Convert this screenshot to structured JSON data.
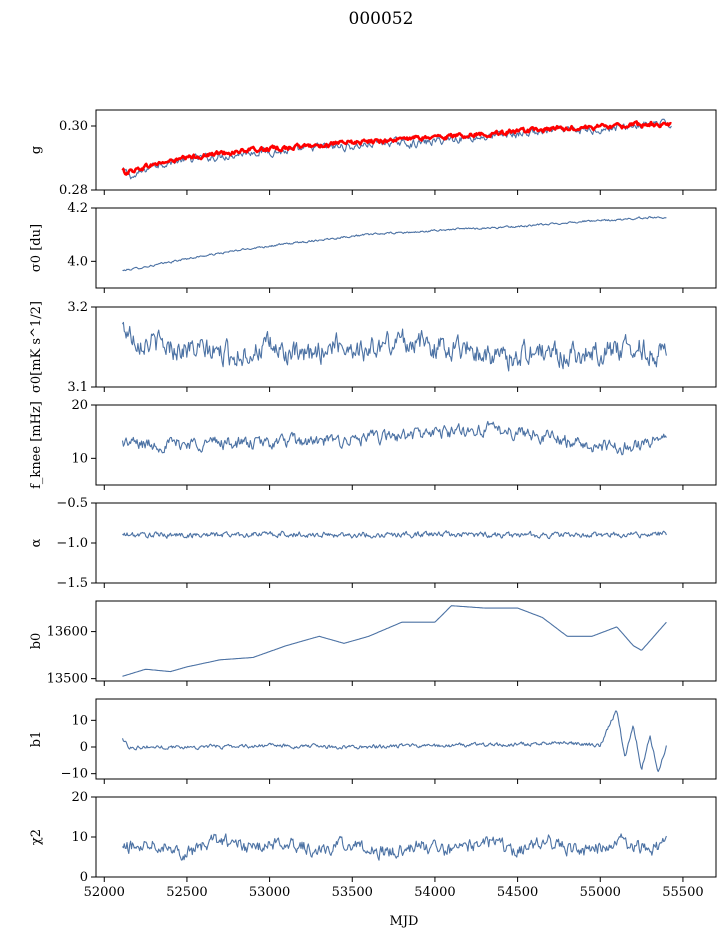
{
  "figure": {
    "title": "000052",
    "xlabel": "MJD"
  },
  "colors": {
    "series": "#4c72a4",
    "fit": "#ff0000",
    "axis": "#000000"
  },
  "chart_data": [
    {
      "type": "line",
      "panel_id": "g",
      "ylabel": "g",
      "ylim": [
        0.28,
        0.305
      ],
      "yticks": [
        0.28,
        0.3
      ],
      "ytick_labels": [
        "0.28",
        "0.30"
      ],
      "xlim": [
        51950,
        55700
      ],
      "x_range": [
        52100,
        55430
      ],
      "series": [
        {
          "color": "#4c72a4",
          "x": [
            52110,
            52180,
            52300,
            52500,
            52700,
            52900,
            53100,
            53300,
            53500,
            53700,
            53900,
            54100,
            54300,
            54500,
            54700,
            54900,
            55100,
            55300,
            55430
          ],
          "y": [
            0.286,
            0.284,
            0.288,
            0.2895,
            0.2905,
            0.292,
            0.292,
            0.2935,
            0.2935,
            0.295,
            0.2945,
            0.296,
            0.2965,
            0.2975,
            0.2985,
            0.2985,
            0.2995,
            0.3005,
            0.3005
          ]
        },
        {
          "color": "#ff0000",
          "x": [
            52110,
            52130,
            52300,
            52500,
            52700,
            52900,
            53100,
            53300,
            53500,
            53700,
            53900,
            54100,
            54300,
            54500,
            54700,
            54900,
            55100,
            55300,
            55430
          ],
          "y": [
            0.286,
            0.2855,
            0.288,
            0.29,
            0.2915,
            0.2925,
            0.2932,
            0.294,
            0.2948,
            0.2955,
            0.2962,
            0.2968,
            0.2975,
            0.2982,
            0.299,
            0.2995,
            0.3,
            0.3005,
            0.3002
          ]
        }
      ]
    },
    {
      "type": "line",
      "panel_id": "sigma0-du",
      "ylabel": "σ0 [du]",
      "ylim": [
        3.9,
        4.2
      ],
      "yticks": [
        4.0,
        4.2
      ],
      "ytick_labels": [
        "4.0",
        "4.2"
      ],
      "xlim": [
        51950,
        55700
      ],
      "series": [
        {
          "color": "#4c72a4",
          "x": [
            52110,
            52300,
            52500,
            52700,
            52900,
            53100,
            53300,
            53500,
            53700,
            53900,
            54100,
            54300,
            54500,
            54700,
            54900,
            55100,
            55300,
            55400
          ],
          "y": [
            3.965,
            3.985,
            4.01,
            4.03,
            4.05,
            4.065,
            4.08,
            4.095,
            4.105,
            4.11,
            4.12,
            4.125,
            4.13,
            4.14,
            4.15,
            4.155,
            4.165,
            4.165
          ]
        }
      ]
    },
    {
      "type": "line",
      "panel_id": "sigma0-mk",
      "ylabel": "σ0[mK s^1/2]",
      "ylim": [
        3.1,
        3.2
      ],
      "yticks": [
        3.1,
        3.2
      ],
      "ytick_labels": [
        "3.1",
        "3.2"
      ],
      "xlim": [
        51950,
        55700
      ],
      "series": [
        {
          "color": "#4c72a4",
          "x": [
            52110,
            52200,
            52400,
            52600,
            52800,
            53000,
            53200,
            53400,
            53600,
            53800,
            54000,
            54200,
            54400,
            54600,
            54800,
            55000,
            55200,
            55400
          ],
          "y": [
            3.175,
            3.16,
            3.15,
            3.145,
            3.14,
            3.15,
            3.135,
            3.155,
            3.145,
            3.16,
            3.15,
            3.15,
            3.135,
            3.145,
            3.14,
            3.145,
            3.15,
            3.14
          ]
        }
      ]
    },
    {
      "type": "line",
      "panel_id": "fknee",
      "ylabel": "f_knee [mHz]",
      "ylim": [
        5,
        20
      ],
      "yticks": [
        10,
        20
      ],
      "ytick_labels": [
        "10",
        "20"
      ],
      "xlim": [
        51950,
        55700
      ],
      "series": [
        {
          "color": "#4c72a4",
          "x": [
            52110,
            52300,
            52500,
            52700,
            52900,
            53100,
            53300,
            53500,
            53700,
            53900,
            54100,
            54300,
            54500,
            54700,
            54900,
            55100,
            55300,
            55400
          ],
          "y": [
            13.0,
            12.5,
            12.8,
            13.0,
            12.7,
            13.2,
            13.0,
            13.5,
            14.0,
            14.5,
            15.0,
            15.5,
            15.0,
            14.0,
            12.5,
            12.0,
            13.0,
            14.5
          ]
        }
      ]
    },
    {
      "type": "line",
      "panel_id": "alpha",
      "ylabel": "α",
      "ylim": [
        -1.5,
        -0.5
      ],
      "yticks": [
        -1.5,
        -1.0,
        -0.5
      ],
      "ytick_labels": [
        "−1.5",
        "−1.0",
        "−0.5"
      ],
      "xlim": [
        51950,
        55700
      ],
      "series": [
        {
          "color": "#4c72a4",
          "x": [
            52110,
            52500,
            53000,
            53500,
            54000,
            54500,
            55000,
            55400
          ],
          "y": [
            -0.9,
            -0.9,
            -0.89,
            -0.9,
            -0.89,
            -0.9,
            -0.9,
            -0.89
          ]
        }
      ]
    },
    {
      "type": "line",
      "panel_id": "b0",
      "ylabel": "b0",
      "ylim": [
        13495,
        13665
      ],
      "yticks": [
        13500,
        13600
      ],
      "ytick_labels": [
        "13500",
        "13600"
      ],
      "xlim": [
        51950,
        55700
      ],
      "series": [
        {
          "color": "#4c72a4",
          "x": [
            52110,
            52250,
            52400,
            52500,
            52700,
            52900,
            53100,
            53300,
            53450,
            53600,
            53800,
            54000,
            54100,
            54300,
            54500,
            54650,
            54800,
            54950,
            55100,
            55200,
            55250,
            55300,
            55400
          ],
          "y": [
            13505,
            13520,
            13515,
            13525,
            13540,
            13545,
            13570,
            13590,
            13575,
            13590,
            13620,
            13620,
            13655,
            13650,
            13650,
            13630,
            13590,
            13590,
            13610,
            13570,
            13560,
            13580,
            13620
          ]
        }
      ]
    },
    {
      "type": "line",
      "panel_id": "b1",
      "ylabel": "b1",
      "ylim": [
        -12,
        18
      ],
      "yticks": [
        -10,
        0,
        10
      ],
      "ytick_labels": [
        "−10",
        "0",
        "10"
      ],
      "xlim": [
        51950,
        55700
      ],
      "series": [
        {
          "color": "#4c72a4",
          "x": [
            52110,
            52150,
            52500,
            53000,
            53500,
            54000,
            54500,
            54800,
            55000,
            55100,
            55150,
            55200,
            55250,
            55300,
            55350,
            55400
          ],
          "y": [
            3.0,
            0.0,
            0.0,
            0.5,
            0.0,
            0.5,
            1.0,
            1.5,
            0.5,
            14.0,
            -4.0,
            8.0,
            -8.0,
            4.0,
            -9.0,
            0.0
          ]
        }
      ]
    },
    {
      "type": "line",
      "panel_id": "chi2",
      "ylabel": "χ2",
      "ylim": [
        0,
        20
      ],
      "yticks": [
        0,
        10,
        20
      ],
      "ytick_labels": [
        "0",
        "10",
        "20"
      ],
      "xlabel": "MJD",
      "xticks": [
        52000,
        52500,
        53000,
        53500,
        54000,
        54500,
        55000,
        55500
      ],
      "xtick_labels": [
        "52000",
        "52500",
        "53000",
        "53500",
        "54000",
        "54500",
        "55000",
        "55500"
      ],
      "xlim": [
        51950,
        55700
      ],
      "series": [
        {
          "color": "#4c72a4",
          "x": [
            52110,
            52300,
            52500,
            52700,
            52900,
            53100,
            53300,
            53500,
            53700,
            53900,
            54100,
            54300,
            54500,
            54700,
            54900,
            55100,
            55300,
            55400
          ],
          "y": [
            7.0,
            9.0,
            6.0,
            9.5,
            7.0,
            9.0,
            6.5,
            8.5,
            6.0,
            8.0,
            6.5,
            9.0,
            6.5,
            9.0,
            6.0,
            9.0,
            7.0,
            8.5
          ]
        }
      ]
    }
  ]
}
